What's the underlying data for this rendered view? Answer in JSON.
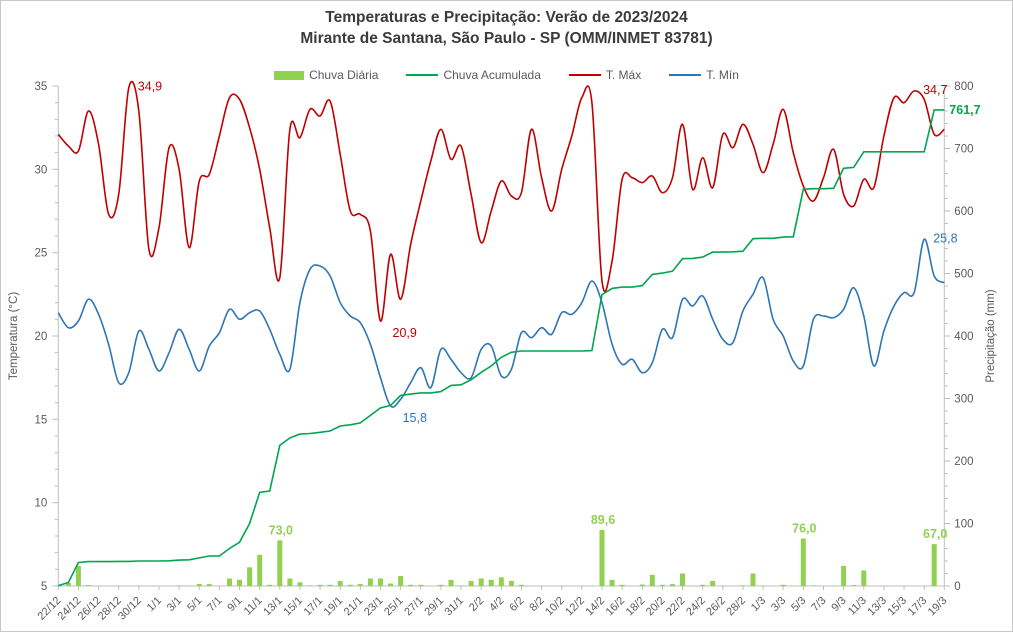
{
  "header": {
    "title": "Temperaturas e Precipitação: Verão de 2023/2024",
    "subtitle": "Mirante de Santana, São Paulo - SP (OMM/INMET 83781)"
  },
  "colors": {
    "rain_bar": "#92d050",
    "rain_accumulated": "#00a550",
    "t_max": "#c00000",
    "t_min": "#2e75b6",
    "axis": "#bfbfbf",
    "tick_label": "#595959",
    "title_text": "#3b3b3b"
  },
  "legend": {
    "items": [
      {
        "label": "Chuva Diária",
        "type": "bar",
        "color": "#92d050"
      },
      {
        "label": "Chuva Acumulada",
        "type": "line",
        "color": "#00a550"
      },
      {
        "label": "T. Máx",
        "type": "line",
        "color": "#c00000"
      },
      {
        "label": "T. Mín",
        "type": "line",
        "color": "#2e75b6"
      }
    ]
  },
  "chart_data": {
    "type": "combo bar + line, dual axis",
    "title": "Temperaturas e Precipitação: Verão de 2023/2024",
    "subtitle": "Mirante de Santana, São Paulo - SP (OMM/INMET 83781)",
    "left_axis": {
      "label": "Temperatura (°C)",
      "min": 5,
      "max": 35,
      "major_tick": 5,
      "minor_tick": 1
    },
    "right_axis": {
      "label": "Precipitação (mm)",
      "min": 0,
      "max": 800,
      "major_tick": 100,
      "minor_tick": 20
    },
    "x_label_every": 2,
    "grid": false,
    "x": [
      "22/12",
      "23/12",
      "24/12",
      "25/12",
      "26/12",
      "27/12",
      "28/12",
      "29/12",
      "30/12",
      "31/12",
      "1/1",
      "2/1",
      "3/1",
      "4/1",
      "5/1",
      "6/1",
      "7/1",
      "8/1",
      "9/1",
      "10/1",
      "11/1",
      "12/1",
      "13/1",
      "14/1",
      "15/1",
      "16/1",
      "17/1",
      "18/1",
      "19/1",
      "20/1",
      "21/1",
      "22/1",
      "23/1",
      "24/1",
      "25/1",
      "26/1",
      "27/1",
      "28/1",
      "29/1",
      "30/1",
      "31/1",
      "1/2",
      "2/2",
      "3/2",
      "4/2",
      "5/2",
      "6/2",
      "7/2",
      "8/2",
      "9/2",
      "10/2",
      "11/2",
      "12/2",
      "13/2",
      "14/2",
      "15/2",
      "16/2",
      "17/2",
      "18/2",
      "19/2",
      "20/2",
      "21/2",
      "22/2",
      "23/2",
      "24/2",
      "25/2",
      "26/2",
      "27/2",
      "28/2",
      "29/2",
      "1/3",
      "2/3",
      "3/3",
      "4/3",
      "5/3",
      "6/3",
      "7/3",
      "8/3",
      "9/3",
      "10/3",
      "11/3",
      "12/3",
      "13/3",
      "14/3",
      "15/3",
      "16/3",
      "17/3",
      "18/3",
      "19/3"
    ],
    "series": [
      {
        "name": "Chuva Diária",
        "type": "bar",
        "axis": "right",
        "unit": "mm",
        "color": "#92d050",
        "values": [
          0.6,
          5,
          32,
          1.4,
          0,
          0,
          0.4,
          0,
          0.6,
          0,
          0,
          0.4,
          1,
          0.6,
          3,
          3,
          0,
          12,
          10,
          30,
          50,
          2,
          73,
          12,
          6,
          1,
          2,
          2,
          8,
          2,
          3,
          12,
          12,
          4,
          16,
          2,
          2,
          0,
          2,
          10,
          1,
          8,
          12,
          10,
          14,
          8,
          2,
          0,
          0,
          0,
          0,
          0,
          0,
          0.6,
          89.6,
          10,
          2,
          0,
          2.4,
          18,
          2,
          3,
          20,
          0.6,
          2,
          8,
          0,
          0.5,
          1,
          20,
          0.6,
          0,
          2,
          0.4,
          76,
          1,
          0,
          0.6,
          32,
          1.4,
          25,
          0,
          0,
          0,
          0,
          0,
          0,
          67,
          0
        ]
      },
      {
        "name": "Chuva Acumulada",
        "type": "line",
        "axis": "right",
        "unit": "mm",
        "color": "#00a550",
        "derived_from": "cumulative sum of Chuva Diária",
        "final_value": 761.7
      },
      {
        "name": "T. Máx",
        "type": "line",
        "axis": "left",
        "unit": "°C",
        "color": "#c00000",
        "smooth": true,
        "values": [
          32.1,
          31.4,
          31.1,
          33.5,
          31.5,
          27.3,
          28.5,
          34.9,
          33.5,
          25.2,
          26.5,
          31.3,
          30.0,
          25.3,
          29.3,
          29.7,
          32.0,
          34.3,
          34.2,
          32.5,
          30.0,
          26.5,
          23.5,
          32.4,
          31.9,
          33.6,
          33.2,
          34.1,
          30.9,
          27.5,
          27.3,
          26.3,
          20.9,
          24.9,
          22.2,
          25.5,
          28.1,
          30.5,
          32.4,
          30.6,
          31.4,
          28.5,
          25.6,
          27.5,
          29.3,
          28.4,
          28.6,
          32.4,
          29.5,
          27.5,
          30.0,
          32.0,
          34.3,
          34.0,
          23.3,
          24.5,
          29.4,
          29.5,
          29.2,
          29.6,
          28.6,
          29.5,
          32.7,
          28.8,
          30.7,
          28.9,
          32.1,
          31.3,
          32.7,
          31.5,
          29.8,
          31.5,
          33.6,
          31.0,
          29.0,
          28.1,
          29.5,
          31.2,
          28.5,
          27.8,
          29.4,
          28.9,
          32.0,
          34.3,
          34.0,
          34.7,
          34.2,
          32.1,
          32.4
        ]
      },
      {
        "name": "T. Mín",
        "type": "line",
        "axis": "left",
        "unit": "°C",
        "color": "#2e75b6",
        "smooth": true,
        "values": [
          21.4,
          20.5,
          20.9,
          22.2,
          21.3,
          19.5,
          17.2,
          17.8,
          20.3,
          19.2,
          17.9,
          19.0,
          20.4,
          19.2,
          17.9,
          19.4,
          20.2,
          21.6,
          21.0,
          21.4,
          21.5,
          20.4,
          18.9,
          18.0,
          22.0,
          24.0,
          24.2,
          23.6,
          22.0,
          21.2,
          20.8,
          19.5,
          17.5,
          15.8,
          16.2,
          17.2,
          18.1,
          16.9,
          19.2,
          18.6,
          17.8,
          17.5,
          19.2,
          19.4,
          17.6,
          18.0,
          20.2,
          19.9,
          20.5,
          20.1,
          21.4,
          21.3,
          22.0,
          23.3,
          22.0,
          19.5,
          18.3,
          18.6,
          17.8,
          18.4,
          20.4,
          19.9,
          22.2,
          21.8,
          22.4,
          21.0,
          19.8,
          19.6,
          21.5,
          22.5,
          23.5,
          21.0,
          20.0,
          18.5,
          18.2,
          21.0,
          21.2,
          21.1,
          21.6,
          22.9,
          21.2,
          18.2,
          20.3,
          21.8,
          22.6,
          22.6,
          25.8,
          23.6,
          23.2
        ]
      }
    ],
    "annotations": [
      {
        "text": "34,9",
        "series": "T. Máx",
        "x": "29/12",
        "index": 7,
        "value": 34.9,
        "color": "#c00000",
        "placement": "above-right",
        "bold": false
      },
      {
        "text": "20,9",
        "series": "T. Máx",
        "x": "23/1",
        "index": 32,
        "value": 20.9,
        "color": "#c00000",
        "placement": "below-right",
        "bold": false
      },
      {
        "text": "34,7",
        "series": "T. Máx",
        "x": "16/3",
        "index": 85,
        "value": 34.7,
        "color": "#c00000",
        "placement": "above-right",
        "bold": false
      },
      {
        "text": "15,8",
        "series": "T. Mín",
        "x": "24/1",
        "index": 33,
        "value": 15.8,
        "color": "#2e75b6",
        "placement": "below-right",
        "bold": false
      },
      {
        "text": "25,8",
        "series": "T. Mín",
        "x": "17/3",
        "index": 86,
        "value": 25.8,
        "color": "#2e75b6",
        "placement": "above-right",
        "bold": false
      },
      {
        "text": "761,7",
        "series": "Chuva Acumulada",
        "x": "19/3",
        "index": 88,
        "value": 761.7,
        "color": "#00a550",
        "placement": "axis-right",
        "bold": true
      },
      {
        "text": "73,0",
        "series": "Chuva Diária",
        "x": "13/1",
        "index": 22,
        "value": 73.0,
        "color": "#92d050",
        "placement": "above-bar",
        "bold": true
      },
      {
        "text": "89,6",
        "series": "Chuva Diária",
        "x": "14/2",
        "index": 54,
        "value": 89.6,
        "color": "#92d050",
        "placement": "above-bar",
        "bold": true
      },
      {
        "text": "76,0",
        "series": "Chuva Diária",
        "x": "5/3",
        "index": 74,
        "value": 76.0,
        "color": "#92d050",
        "placement": "above-bar",
        "bold": true
      },
      {
        "text": "67,0",
        "series": "Chuva Diária",
        "x": "18/3",
        "index": 87,
        "value": 67.0,
        "color": "#92d050",
        "placement": "above-bar",
        "bold": true
      }
    ]
  }
}
